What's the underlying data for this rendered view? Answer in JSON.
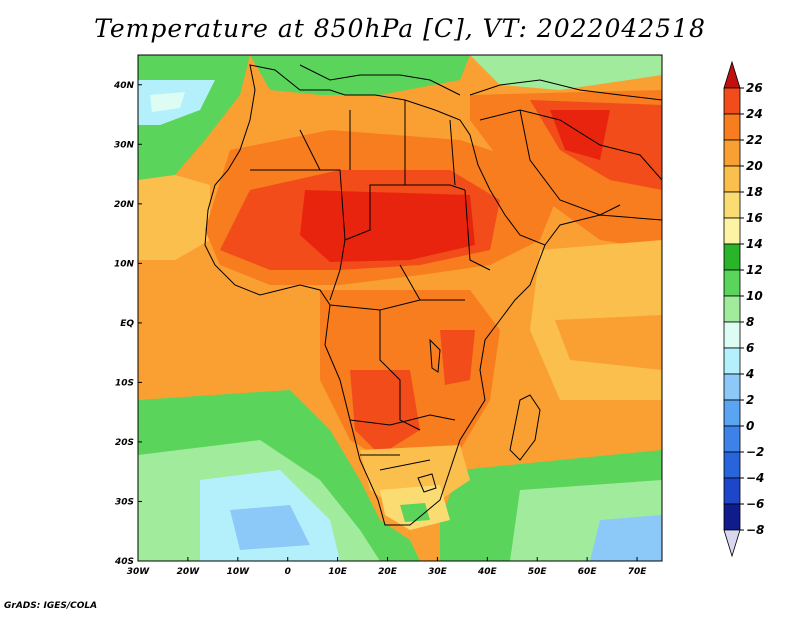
{
  "title": "Temperature at 850hPa [C], VT: 2022042518",
  "credit": "GrADS: IGES/COLA",
  "map": {
    "lon_range": [
      -30,
      75
    ],
    "lat_range": [
      -40,
      45
    ],
    "x_ticks": [
      {
        "lon": -30,
        "label": "30W"
      },
      {
        "lon": -20,
        "label": "20W"
      },
      {
        "lon": -10,
        "label": "10W"
      },
      {
        "lon": 0,
        "label": "0"
      },
      {
        "lon": 10,
        "label": "10E"
      },
      {
        "lon": 20,
        "label": "20E"
      },
      {
        "lon": 30,
        "label": "30E"
      },
      {
        "lon": 40,
        "label": "40E"
      },
      {
        "lon": 50,
        "label": "50E"
      },
      {
        "lon": 60,
        "label": "60E"
      },
      {
        "lon": 70,
        "label": "70E"
      }
    ],
    "y_ticks": [
      {
        "lat": 40,
        "label": "40N"
      },
      {
        "lat": 30,
        "label": "30N"
      },
      {
        "lat": 20,
        "label": "20N"
      },
      {
        "lat": 10,
        "label": "10N"
      },
      {
        "lat": 0,
        "label": "EQ"
      },
      {
        "lat": -10,
        "label": "10S"
      },
      {
        "lat": -20,
        "label": "20S"
      },
      {
        "lat": -30,
        "label": "30S"
      },
      {
        "lat": -40,
        "label": "40S"
      }
    ]
  },
  "colorbar": {
    "levels": [
      {
        "value": "26",
        "color": "#e8240e"
      },
      {
        "value": "24",
        "color": "#f24c1a"
      },
      {
        "value": "22",
        "color": "#f77d1e"
      },
      {
        "value": "20",
        "color": "#faa032"
      },
      {
        "value": "18",
        "color": "#fbbf4e"
      },
      {
        "value": "16",
        "color": "#fbdc72"
      },
      {
        "value": "14",
        "color": "#fcf3a4"
      },
      {
        "value": "12",
        "color": "#2ab42a"
      },
      {
        "value": "10",
        "color": "#5ad45a"
      },
      {
        "value": "8",
        "color": "#a0ec9c"
      },
      {
        "value": "6",
        "color": "#dcfcf4"
      },
      {
        "value": "4",
        "color": "#b4f0fc"
      },
      {
        "value": "2",
        "color": "#8cc8f8"
      },
      {
        "value": "0",
        "color": "#5aa4f4"
      },
      {
        "value": "−2",
        "color": "#3c82e8"
      },
      {
        "value": "−4",
        "color": "#2864dc"
      },
      {
        "value": "−6",
        "color": "#1e46c8"
      },
      {
        "value": "−8",
        "color": "#101c8c"
      }
    ],
    "top_arrow_color": "#c01010",
    "bottom_arrow_color": "#d8d8f0"
  }
}
